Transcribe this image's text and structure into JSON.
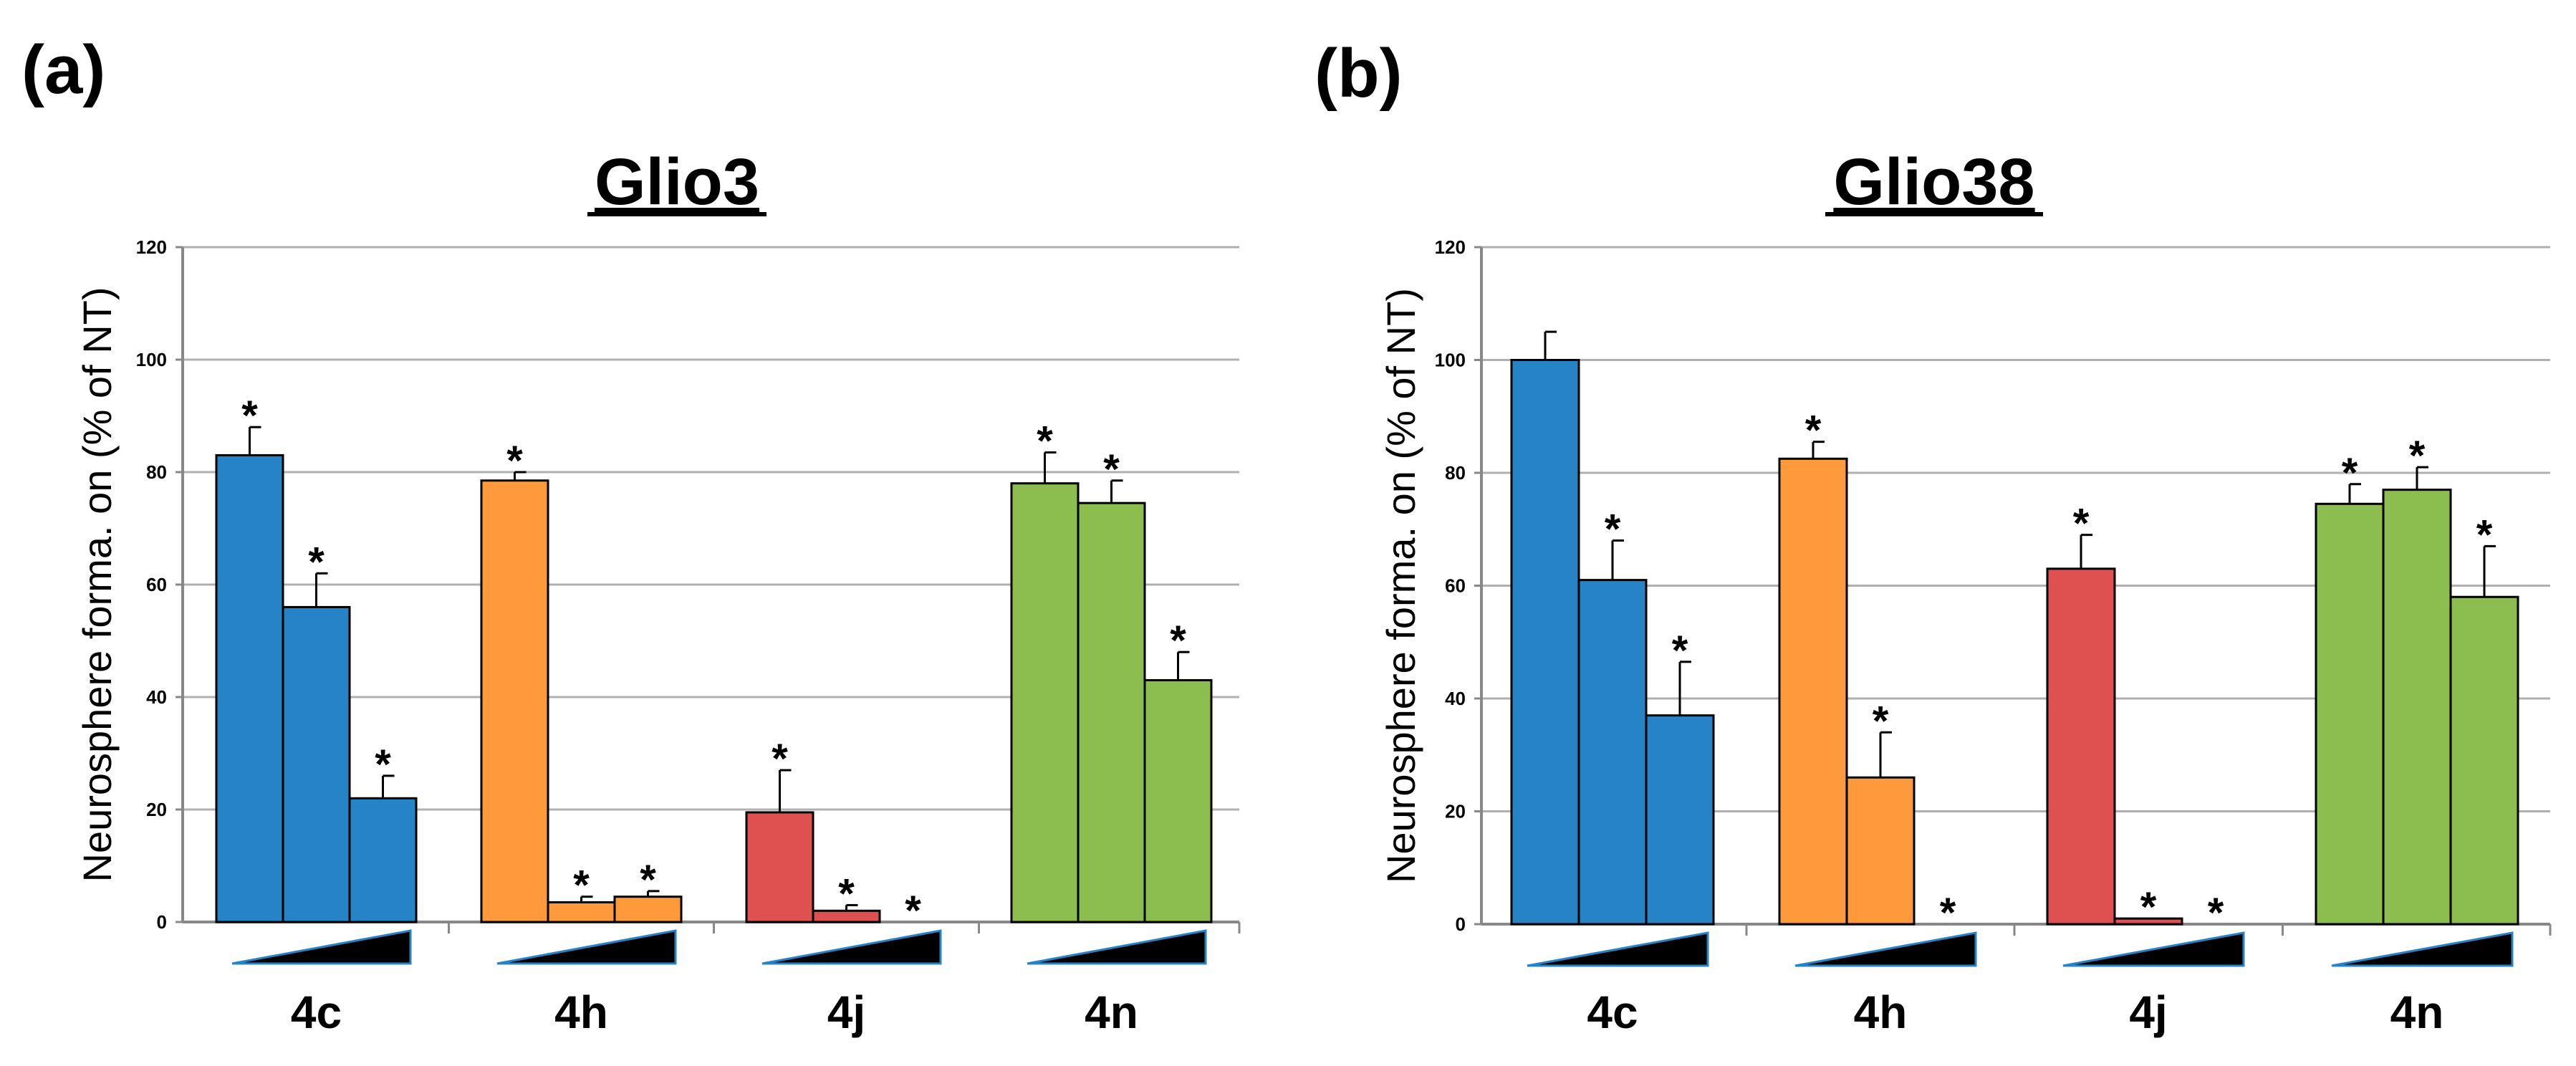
{
  "colors": {
    "4c": "#2683C6",
    "4h": "#FF9A3C",
    "4j": "#DF5050",
    "4n": "#8BBD4F",
    "grid": "#B0B0B0",
    "axis": "#888888",
    "errorbar": "#000000",
    "triangle_fill": "#000000",
    "triangle_edge": "#2683C6"
  },
  "chart_data": [
    {
      "panel_label": "(a)",
      "type": "bar",
      "title": "Glio3",
      "ylabel": "Neurosphere forma. on (% of NT)",
      "ylim": [
        0,
        120
      ],
      "yticks": [
        "0",
        "20",
        "40",
        "60",
        "80",
        "100",
        "120"
      ],
      "grid": true,
      "groups": [
        {
          "label": "4c",
          "values": [
            83,
            56,
            22
          ],
          "errors": [
            5,
            6,
            4
          ],
          "significant": [
            true,
            true,
            true
          ]
        },
        {
          "label": "4h",
          "values": [
            78.5,
            3.5,
            4.5
          ],
          "errors": [
            1.5,
            1,
            1
          ],
          "significant": [
            true,
            true,
            true
          ]
        },
        {
          "label": "4j",
          "values": [
            19.5,
            2,
            0
          ],
          "errors": [
            7.5,
            1,
            0
          ],
          "significant": [
            true,
            true,
            true
          ]
        },
        {
          "label": "4n",
          "values": [
            78,
            74.5,
            43
          ],
          "errors": [
            5.5,
            4,
            5
          ],
          "significant": [
            true,
            true,
            true
          ]
        }
      ]
    },
    {
      "panel_label": "(b)",
      "type": "bar",
      "title": "Glio38",
      "ylabel": "Neurosphere forma. on (% of NT)",
      "ylim": [
        0,
        120
      ],
      "yticks": [
        "0",
        "20",
        "40",
        "60",
        "80",
        "100",
        "120"
      ],
      "grid": true,
      "groups": [
        {
          "label": "4c",
          "values": [
            100,
            61,
            37
          ],
          "errors": [
            5,
            7,
            9.5
          ],
          "significant": [
            false,
            true,
            true
          ]
        },
        {
          "label": "4h",
          "values": [
            82.5,
            26,
            0
          ],
          "errors": [
            3,
            8,
            0
          ],
          "significant": [
            true,
            true,
            true
          ]
        },
        {
          "label": "4j",
          "values": [
            63,
            1,
            0
          ],
          "errors": [
            6,
            0,
            0
          ],
          "significant": [
            true,
            true,
            true
          ]
        },
        {
          "label": "4n",
          "values": [
            74.5,
            77,
            58
          ],
          "errors": [
            3.5,
            4,
            9
          ],
          "significant": [
            true,
            true,
            true
          ]
        }
      ]
    }
  ]
}
